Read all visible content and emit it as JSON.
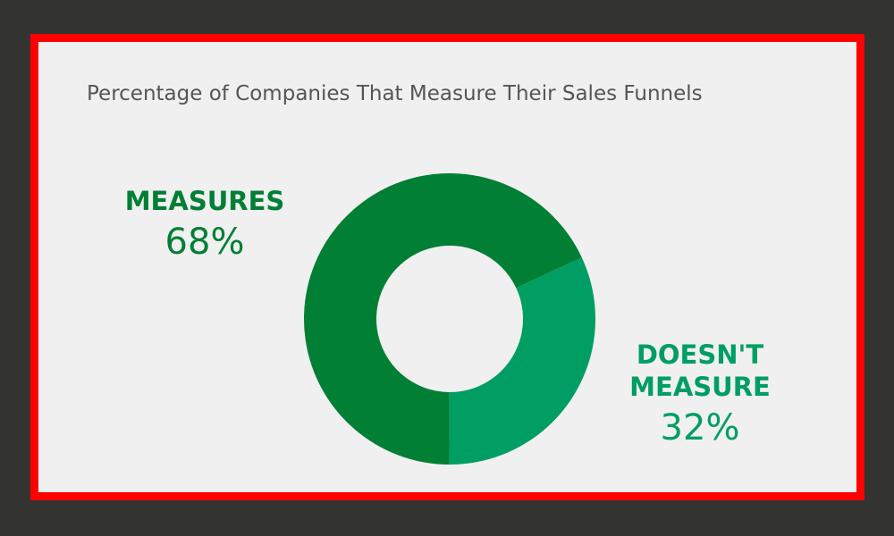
{
  "chart_data": {
    "type": "pie",
    "donut": true,
    "title": "Percentage of Companies That Measure Their Sales Funnels",
    "slices": [
      {
        "label": "DOESN'T\nMEASURE",
        "value": 32,
        "display": "32%",
        "color": "#009e63"
      },
      {
        "label": "MEASURES",
        "value": 68,
        "display": "68%",
        "color": "#007f35"
      }
    ],
    "start_angle_deg": 65,
    "direction": "clockwise",
    "center_color": "#f0f0f0"
  },
  "colors": {
    "background": "#333331",
    "border": "#ff0000",
    "panel": "#f0f0f0",
    "title_text": "#555555"
  }
}
